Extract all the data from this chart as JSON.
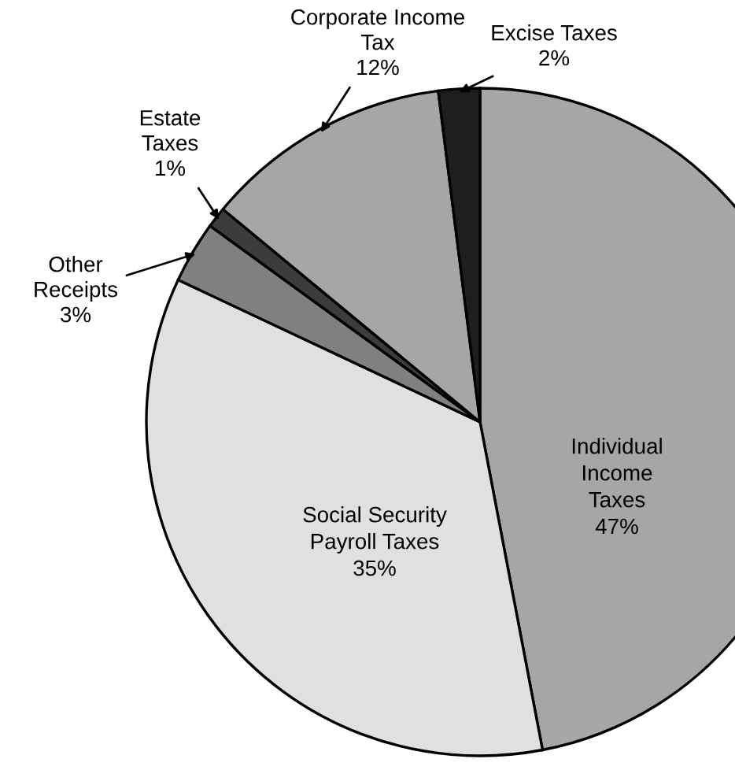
{
  "chart_data": {
    "type": "pie",
    "categories": [
      "Individual Income Taxes",
      "Social Security Payroll Taxes",
      "Other Receipts",
      "Estate Taxes",
      "Corporate Income Tax",
      "Excise Taxes"
    ],
    "values": [
      47,
      35,
      3,
      1,
      12,
      2
    ],
    "value_labels": [
      "47%",
      "35%",
      "3%",
      "1%",
      "12%",
      "2%"
    ],
    "colors": [
      "#a6a6a6",
      "#e0e0e0",
      "#808080",
      "#3c3c3c",
      "#a6a6a6",
      "#1e1e1e"
    ]
  }
}
